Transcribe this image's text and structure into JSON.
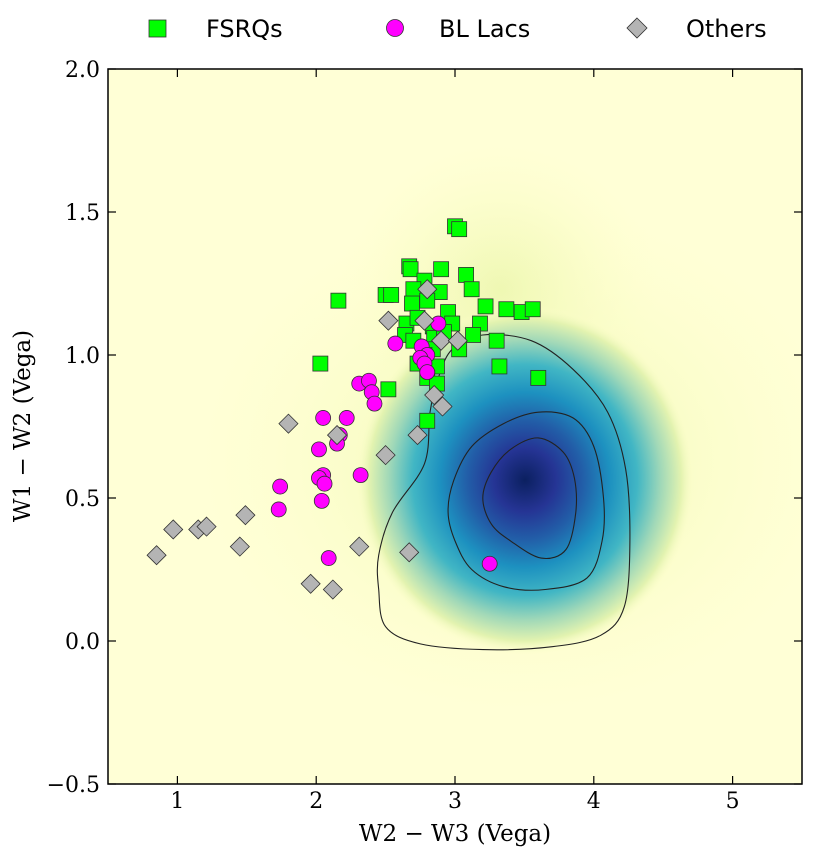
{
  "chart_data": {
    "type": "scatter",
    "xlabel": "W2 − W3 (Vega)",
    "ylabel": "W1 − W2 (Vega)",
    "xlim": [
      0.5,
      5.5
    ],
    "ylim": [
      -0.5,
      2.0
    ],
    "xticks": [
      1,
      2,
      3,
      4,
      5
    ],
    "xtick_labels": [
      "1",
      "2",
      "3",
      "4",
      "5"
    ],
    "yticks": [
      -0.5,
      0.0,
      0.5,
      1.0,
      1.5,
      2.0
    ],
    "ytick_labels": [
      "−0.5",
      "0.0",
      "0.5",
      "1.0",
      "1.5",
      "2.0"
    ],
    "grid": false,
    "legend_position": "top, outside plot",
    "background_density": {
      "description": "filled density map (yellow to dark blue) with three contour levels",
      "colormap": [
        "#ffffd9",
        "#edf8b1",
        "#c7e9b4",
        "#7fcdbb",
        "#41b6c4",
        "#1d91c0",
        "#225ea8",
        "#253494",
        "#081d58"
      ],
      "peak": [
        3.6,
        0.5
      ]
    },
    "contours": [
      [
        [
          2.45,
          0.18
        ],
        [
          2.5,
          0.05
        ],
        [
          2.75,
          -0.01
        ],
        [
          3.2,
          -0.03
        ],
        [
          3.7,
          -0.02
        ],
        [
          4.05,
          0.02
        ],
        [
          4.22,
          0.12
        ],
        [
          4.26,
          0.35
        ],
        [
          4.23,
          0.6
        ],
        [
          4.1,
          0.8
        ],
        [
          3.85,
          0.95
        ],
        [
          3.55,
          1.05
        ],
        [
          3.2,
          1.07
        ],
        [
          2.98,
          1.02
        ],
        [
          2.88,
          0.92
        ],
        [
          2.82,
          0.8
        ],
        [
          2.78,
          0.62
        ],
        [
          2.55,
          0.45
        ],
        [
          2.45,
          0.3
        ]
      ],
      [
        [
          2.95,
          0.45
        ],
        [
          3.0,
          0.35
        ],
        [
          3.12,
          0.25
        ],
        [
          3.35,
          0.19
        ],
        [
          3.65,
          0.18
        ],
        [
          3.95,
          0.22
        ],
        [
          4.06,
          0.35
        ],
        [
          4.07,
          0.5
        ],
        [
          4.0,
          0.68
        ],
        [
          3.85,
          0.78
        ],
        [
          3.6,
          0.8
        ],
        [
          3.35,
          0.76
        ],
        [
          3.12,
          0.68
        ],
        [
          2.99,
          0.56
        ]
      ],
      [
        [
          3.2,
          0.5
        ],
        [
          3.26,
          0.41
        ],
        [
          3.4,
          0.35
        ],
        [
          3.62,
          0.29
        ],
        [
          3.8,
          0.32
        ],
        [
          3.87,
          0.45
        ],
        [
          3.86,
          0.57
        ],
        [
          3.78,
          0.66
        ],
        [
          3.6,
          0.71
        ],
        [
          3.4,
          0.67
        ],
        [
          3.26,
          0.59
        ]
      ]
    ],
    "series": [
      {
        "name": "FSRQs",
        "marker": "square",
        "color": "#00ff00",
        "points": [
          [
            3.0,
            1.45
          ],
          [
            3.03,
            1.44
          ],
          [
            2.67,
            1.31
          ],
          [
            2.68,
            1.3
          ],
          [
            2.9,
            1.3
          ],
          [
            3.08,
            1.28
          ],
          [
            2.78,
            1.26
          ],
          [
            2.7,
            1.23
          ],
          [
            2.89,
            1.22
          ],
          [
            3.12,
            1.23
          ],
          [
            2.5,
            1.21
          ],
          [
            2.54,
            1.21
          ],
          [
            2.16,
            1.19
          ],
          [
            2.69,
            1.18
          ],
          [
            2.8,
            1.19
          ],
          [
            3.22,
            1.17
          ],
          [
            3.37,
            1.16
          ],
          [
            3.48,
            1.15
          ],
          [
            3.56,
            1.16
          ],
          [
            2.95,
            1.15
          ],
          [
            2.65,
            1.11
          ],
          [
            2.73,
            1.13
          ],
          [
            2.84,
            1.1
          ],
          [
            2.98,
            1.11
          ],
          [
            3.18,
            1.11
          ],
          [
            3.13,
            1.07
          ],
          [
            2.64,
            1.07
          ],
          [
            2.7,
            1.05
          ],
          [
            2.85,
            1.06
          ],
          [
            2.92,
            1.08
          ],
          [
            3.03,
            1.02
          ],
          [
            3.3,
            1.05
          ],
          [
            2.84,
            1.02
          ],
          [
            2.78,
            1.0
          ],
          [
            2.87,
            0.96
          ],
          [
            2.73,
            0.97
          ],
          [
            2.8,
            0.92
          ],
          [
            2.87,
            0.9
          ],
          [
            2.03,
            0.97
          ],
          [
            2.52,
            0.88
          ],
          [
            3.32,
            0.96
          ],
          [
            3.6,
            0.92
          ],
          [
            2.8,
            0.77
          ]
        ]
      },
      {
        "name": "BL Lacs",
        "marker": "circle",
        "color": "#ff00ff",
        "points": [
          [
            2.88,
            1.11
          ],
          [
            2.57,
            1.04
          ],
          [
            2.76,
            1.03
          ],
          [
            2.8,
            1.0
          ],
          [
            2.75,
            0.99
          ],
          [
            2.78,
            0.97
          ],
          [
            2.8,
            0.94
          ],
          [
            2.31,
            0.9
          ],
          [
            2.38,
            0.91
          ],
          [
            2.4,
            0.87
          ],
          [
            2.42,
            0.83
          ],
          [
            2.05,
            0.78
          ],
          [
            2.22,
            0.78
          ],
          [
            2.17,
            0.72
          ],
          [
            2.15,
            0.69
          ],
          [
            2.02,
            0.67
          ],
          [
            2.05,
            0.58
          ],
          [
            2.32,
            0.58
          ],
          [
            2.02,
            0.57
          ],
          [
            2.06,
            0.55
          ],
          [
            1.74,
            0.54
          ],
          [
            2.04,
            0.49
          ],
          [
            1.73,
            0.46
          ],
          [
            2.09,
            0.29
          ],
          [
            3.25,
            0.27
          ]
        ]
      },
      {
        "name": "Others",
        "marker": "diamond",
        "color": "#b4b4b4",
        "points": [
          [
            2.8,
            1.23
          ],
          [
            2.52,
            1.12
          ],
          [
            2.78,
            1.12
          ],
          [
            2.9,
            1.05
          ],
          [
            3.02,
            1.05
          ],
          [
            2.85,
            0.86
          ],
          [
            2.91,
            0.82
          ],
          [
            1.8,
            0.76
          ],
          [
            2.73,
            0.72
          ],
          [
            2.15,
            0.72
          ],
          [
            2.5,
            0.65
          ],
          [
            1.49,
            0.44
          ],
          [
            0.97,
            0.39
          ],
          [
            1.15,
            0.39
          ],
          [
            1.21,
            0.4
          ],
          [
            1.45,
            0.33
          ],
          [
            0.85,
            0.3
          ],
          [
            2.31,
            0.33
          ],
          [
            2.67,
            0.31
          ],
          [
            1.96,
            0.2
          ],
          [
            2.12,
            0.18
          ]
        ]
      }
    ]
  }
}
